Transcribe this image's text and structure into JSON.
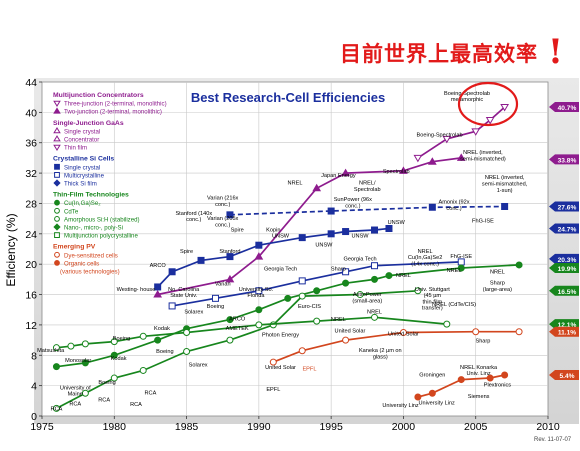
{
  "slide_title": "目前世界上最高效率",
  "exclaim": "!",
  "rev_note": "Rev. 11-07-07",
  "chart_data": {
    "type": "line",
    "title": "Best Research-Cell Efficiencies",
    "xlabel": "",
    "ylabel": "Efficiency (%)",
    "xlim": [
      1975,
      2010
    ],
    "ylim": [
      0,
      44
    ],
    "xticks": [
      1975,
      1980,
      1985,
      1990,
      1995,
      2000,
      2005,
      2010
    ],
    "yticks": [
      0,
      4,
      8,
      12,
      16,
      20,
      24,
      28,
      32,
      36,
      40,
      44
    ],
    "legend": {
      "placement": "top-left",
      "groups": [
        {
          "heading": "Multijunction Concentrators",
          "color": "#8e1c8e",
          "items": [
            {
              "label": "Three-junction (2-terminal, monolithic)",
              "marker": "tri-down-open",
              "color": "#8e1c8e"
            },
            {
              "label": "Two-junction (2-terminal, monolithic)",
              "marker": "tri-up",
              "color": "#8e1c8e"
            }
          ]
        },
        {
          "heading": "Single-Junction GaAs",
          "color": "#8e1c8e",
          "items": [
            {
              "label": "Single crystal",
              "marker": "tri-up-open",
              "color": "#8e1c8e"
            },
            {
              "label": "Concentrator",
              "marker": "tri-up-open",
              "color": "#8e1c8e"
            },
            {
              "label": "Thin film",
              "marker": "tri-down-open",
              "color": "#8e1c8e"
            }
          ]
        },
        {
          "heading": "Crystalline Si Cells",
          "color": "#1b2f9e",
          "items": [
            {
              "label": "Single crystal",
              "marker": "square",
              "color": "#1b2f9e"
            },
            {
              "label": "Multicrystalline",
              "marker": "square-open",
              "color": "#1b2f9e"
            },
            {
              "label": "Thick Si film",
              "marker": "diamond",
              "color": "#1b2f9e"
            }
          ]
        },
        {
          "heading": "Thin-Film Technologies",
          "color": "#17861d",
          "items": [
            {
              "label": "Cu(In,Ga)Se₂",
              "marker": "circle",
              "color": "#17861d"
            },
            {
              "label": "CdTe",
              "marker": "circle-open",
              "color": "#17861d"
            },
            {
              "label": "Amorphous Si:H (stabilized)",
              "marker": "circle-open",
              "color": "#17861d"
            },
            {
              "label": "Nano-, micro-, poly-Si",
              "marker": "diamond",
              "color": "#17861d"
            },
            {
              "label": "Multijunction polycrystalline",
              "marker": "square-open",
              "color": "#17861d"
            }
          ]
        },
        {
          "heading": "Emerging PV",
          "color": "#d2461e",
          "items": [
            {
              "label": "Dye-sensitized cells",
              "marker": "circle-open",
              "color": "#d2461e"
            },
            {
              "label": "Organic cells",
              "marker": "circle",
              "color": "#d2461e"
            },
            {
              "label": "(various technologies)",
              "marker": "none",
              "color": "#d2461e"
            }
          ]
        }
      ]
    },
    "series": [
      {
        "name": "Three-junction (2-terminal, monolithic)",
        "color": "#8e1c8e",
        "marker": "tri-down-open",
        "x": [
          2001,
          2003,
          2005,
          2006,
          2007
        ],
        "y": [
          34,
          36.5,
          37.5,
          39,
          40.7
        ]
      },
      {
        "name": "Two-junction (2-terminal, monolithic)",
        "color": "#8e1c8e",
        "marker": "tri-up",
        "x": [
          1983,
          1988,
          1990,
          1994,
          1996,
          2000,
          2002,
          2004
        ],
        "y": [
          16,
          18,
          21,
          30,
          32,
          32.3,
          33.5,
          34
        ]
      },
      {
        "name": "Single crystal Si",
        "color": "#1b2f9e",
        "marker": "square",
        "x": [
          1983,
          1984,
          1986,
          1988,
          1990,
          1993,
          1995,
          1996,
          1998,
          1999
        ],
        "y": [
          17,
          19,
          20.5,
          21,
          22.5,
          23.5,
          24,
          24.3,
          24.5,
          24.7
        ]
      },
      {
        "name": "Multicrystalline Si",
        "color": "#1b2f9e",
        "marker": "square-open",
        "x": [
          1984,
          1987,
          1990,
          1993,
          1996,
          1998,
          2004
        ],
        "y": [
          14.5,
          15.5,
          16.5,
          17.8,
          19,
          19.8,
          20.3
        ]
      },
      {
        "name": "Si concentrator (dashed)",
        "color": "#1b2f9e",
        "marker": "square",
        "x": [
          1988,
          1995,
          2002,
          2007
        ],
        "y": [
          26.5,
          27,
          27.5,
          27.6
        ]
      },
      {
        "name": "Cu(In,Ga)Se2",
        "color": "#17861d",
        "marker": "circle",
        "x": [
          1976,
          1978,
          1980,
          1983,
          1985,
          1988,
          1990,
          1992,
          1994,
          1996,
          1998,
          1999,
          2004,
          2008
        ],
        "y": [
          6.5,
          7,
          8,
          10,
          11.5,
          12.7,
          14,
          15.5,
          16.5,
          17.5,
          18,
          18.5,
          19.5,
          19.9
        ]
      },
      {
        "name": "CdTe",
        "color": "#17861d",
        "marker": "circle-open",
        "x": [
          1976,
          1978,
          1980,
          1982,
          1985,
          1988,
          1991,
          1993,
          1997,
          2001
        ],
        "y": [
          1,
          3,
          5,
          6,
          8.5,
          10,
          12,
          15.8,
          16,
          16.5
        ]
      },
      {
        "name": "Amorphous Si:H (stabilized)",
        "color": "#17861d",
        "marker": "circle-open",
        "x": [
          1976,
          1977,
          1978,
          1980,
          1982,
          1985,
          1990,
          1994,
          1998,
          2003
        ],
        "y": [
          9,
          9.2,
          9.5,
          9.8,
          10.5,
          11,
          12,
          12.5,
          13,
          12.1
        ]
      },
      {
        "name": "Dye-sensitized cells",
        "color": "#d2461e",
        "marker": "circle-open",
        "x": [
          1991,
          1993,
          1996,
          2000,
          2005,
          2008
        ],
        "y": [
          7.1,
          8.6,
          10,
          11,
          11.1,
          11.1
        ]
      },
      {
        "name": "Organic cells",
        "color": "#d2461e",
        "marker": "circle",
        "x": [
          2001,
          2002,
          2004,
          2006,
          2007
        ],
        "y": [
          2.5,
          3,
          4.8,
          5,
          5.4
        ]
      }
    ],
    "right_labels": [
      {
        "text": "40.7%",
        "y": 40.7,
        "color": "#8e1c8e"
      },
      {
        "text": "33.8%",
        "y": 33.8,
        "color": "#8e1c8e"
      },
      {
        "text": "27.6%",
        "y": 27.6,
        "color": "#1b2f9e"
      },
      {
        "text": "24.7%",
        "y": 24.7,
        "color": "#1b2f9e"
      },
      {
        "text": "20.3%",
        "y": 20.7,
        "color": "#1b2f9e"
      },
      {
        "text": "19.9%",
        "y": 19.5,
        "color": "#17861d"
      },
      {
        "text": "16.5%",
        "y": 16.5,
        "color": "#17861d"
      },
      {
        "text": "12.1%",
        "y": 12.1,
        "color": "#17861d"
      },
      {
        "text": "11.1%",
        "y": 11.1,
        "color": "#d2461e"
      },
      {
        "text": "5.4%",
        "y": 5.4,
        "color": "#d2461e"
      }
    ],
    "annotations": [
      {
        "text": "Boeing-Spectrolab metamorphic",
        "x": 2004.4,
        "y": 42.3,
        "color": "#000000"
      },
      {
        "text": "Boeing-Spectrolab",
        "x": 2002.5,
        "y": 36.8,
        "color": "#000000"
      },
      {
        "text": "Spectrolab",
        "x": 1999.5,
        "y": 32,
        "color": "#000000"
      },
      {
        "text": "NREL (inverted, semi-mismatched)",
        "x": 2005.5,
        "y": 34.5,
        "color": "#000000"
      },
      {
        "text": "NREL (inverted, semi-mismatched, 1-sun)",
        "x": 2007,
        "y": 31.2,
        "color": "#000000"
      },
      {
        "text": "Japan Energy",
        "x": 1995.5,
        "y": 31.5,
        "color": "#000000"
      },
      {
        "text": "NREL",
        "x": 1992.5,
        "y": 30.5,
        "color": "#000000"
      },
      {
        "text": "NREL/ Spectrolab",
        "x": 1997.5,
        "y": 30.5,
        "color": "#000000"
      },
      {
        "text": "SunPower (96x conc.)",
        "x": 1996.5,
        "y": 28.3,
        "color": "#000000"
      },
      {
        "text": "Amonix (92x conc.)",
        "x": 2003.5,
        "y": 28,
        "color": "#000000"
      },
      {
        "text": "FhG-ISE",
        "x": 2005.5,
        "y": 25.5,
        "color": "#000000"
      },
      {
        "text": "Varian (216x conc.)",
        "x": 1987.5,
        "y": 28.5,
        "color": "#000000"
      },
      {
        "text": "Stanford (140x conc.)",
        "x": 1985.5,
        "y": 26.5,
        "color": "#000000"
      },
      {
        "text": "Varian (205x conc.)",
        "x": 1987.5,
        "y": 25.8,
        "color": "#000000"
      },
      {
        "text": "Spire",
        "x": 1988.5,
        "y": 24.3,
        "color": "#000000"
      },
      {
        "text": "Kopin",
        "x": 1991,
        "y": 24.3,
        "color": "#000000"
      },
      {
        "text": "UNSW",
        "x": 1991.5,
        "y": 23.5,
        "color": "#000000"
      },
      {
        "text": "UNSW",
        "x": 1994.5,
        "y": 22.3,
        "color": "#000000"
      },
      {
        "text": "UNSW",
        "x": 1997,
        "y": 23.5,
        "color": "#000000"
      },
      {
        "text": "UNSW",
        "x": 1999.5,
        "y": 25.3,
        "color": "#000000"
      },
      {
        "text": "Spire",
        "x": 1985,
        "y": 21.5,
        "color": "#000000"
      },
      {
        "text": "Stanford",
        "x": 1988,
        "y": 21.5,
        "color": "#000000"
      },
      {
        "text": "ARCO",
        "x": 1983,
        "y": 19.6,
        "color": "#000000"
      },
      {
        "text": "Westing- house",
        "x": 1981.5,
        "y": 16.5,
        "color": "#000000"
      },
      {
        "text": "Varian",
        "x": 1987.5,
        "y": 17.2,
        "color": "#000000"
      },
      {
        "text": "Georgia Tech",
        "x": 1991.5,
        "y": 19.2,
        "color": "#000000"
      },
      {
        "text": "Georgia Tech",
        "x": 1997,
        "y": 20.5,
        "color": "#000000"
      },
      {
        "text": "Sharp",
        "x": 1995.5,
        "y": 19.2,
        "color": "#000000"
      },
      {
        "text": "NREL Cu(In,Ga)Se2 (14x conc.)",
        "x": 2001.5,
        "y": 21.5,
        "color": "#000000"
      },
      {
        "text": "FhG-ISE",
        "x": 2004,
        "y": 20.8,
        "color": "#000000"
      },
      {
        "text": "NREL",
        "x": 2003.5,
        "y": 19,
        "color": "#000000"
      },
      {
        "text": "NREL",
        "x": 2000,
        "y": 18.3,
        "color": "#000000"
      },
      {
        "text": "NREL",
        "x": 2006.5,
        "y": 18.8,
        "color": "#000000"
      },
      {
        "text": "Sharp (large-area)",
        "x": 2006.5,
        "y": 17.3,
        "color": "#000000"
      },
      {
        "text": "NREL (CdTe/CIS)",
        "x": 2003.5,
        "y": 14.5,
        "color": "#000000"
      },
      {
        "text": "Euro-CIS",
        "x": 1993.5,
        "y": 14.2,
        "color": "#000000"
      },
      {
        "text": "AstroPower (small-area)",
        "x": 1997.5,
        "y": 15.8,
        "color": "#000000"
      },
      {
        "text": "Univ. Stuttgart (45 µm thin-film transfer)",
        "x": 2002,
        "y": 16.5,
        "color": "#000000"
      },
      {
        "text": "University So. Florida",
        "x": 1989.8,
        "y": 16.5,
        "color": "#000000"
      },
      {
        "text": "No. Carolina State Univ.",
        "x": 1984.8,
        "y": 16.5,
        "color": "#000000"
      },
      {
        "text": "Solarex",
        "x": 1985.5,
        "y": 13.5,
        "color": "#000000"
      },
      {
        "text": "Boeing",
        "x": 1987,
        "y": 14.2,
        "color": "#000000"
      },
      {
        "text": "ARCO",
        "x": 1988.5,
        "y": 12.6,
        "color": "#000000"
      },
      {
        "text": "AMETEK",
        "x": 1988.5,
        "y": 11.3,
        "color": "#000000"
      },
      {
        "text": "Photon Energy",
        "x": 1991.5,
        "y": 10.5,
        "color": "#000000"
      },
      {
        "text": "NREL",
        "x": 1995.5,
        "y": 12.5,
        "color": "#000000"
      },
      {
        "text": "NREL",
        "x": 1998,
        "y": 13.5,
        "color": "#000000"
      },
      {
        "text": "United Solar",
        "x": 1996.3,
        "y": 11,
        "color": "#000000"
      },
      {
        "text": "United Solar",
        "x": 2000,
        "y": 10.6,
        "color": "#000000"
      },
      {
        "text": "Kodak",
        "x": 1983.3,
        "y": 11.3,
        "color": "#000000"
      },
      {
        "text": "Boeing",
        "x": 1980.5,
        "y": 10,
        "color": "#000000"
      },
      {
        "text": "Boeing",
        "x": 1983.5,
        "y": 8.3,
        "color": "#000000"
      },
      {
        "text": "Kodak",
        "x": 1980.3,
        "y": 7.4,
        "color": "#000000"
      },
      {
        "text": "Monosolar",
        "x": 1977.5,
        "y": 7.1,
        "color": "#000000"
      },
      {
        "text": "Matsushita",
        "x": 1975.6,
        "y": 8.4,
        "color": "#000000"
      },
      {
        "text": "University of Maine",
        "x": 1977.3,
        "y": 3.5,
        "color": "#000000"
      },
      {
        "text": "Boeing",
        "x": 1979.5,
        "y": 4.2,
        "color": "#000000"
      },
      {
        "text": "RCA",
        "x": 1976,
        "y": 0.7,
        "color": "#000000"
      },
      {
        "text": "RCA",
        "x": 1977.3,
        "y": 1.4,
        "color": "#000000"
      },
      {
        "text": "RCA",
        "x": 1979.3,
        "y": 1.9,
        "color": "#000000"
      },
      {
        "text": "RCA",
        "x": 1981.5,
        "y": 1.3,
        "color": "#000000"
      },
      {
        "text": "RCA",
        "x": 1982.5,
        "y": 2.8,
        "color": "#000000"
      },
      {
        "text": "Solarex",
        "x": 1985.8,
        "y": 6.5,
        "color": "#000000"
      },
      {
        "text": "United Solar",
        "x": 1991.5,
        "y": 6.2,
        "color": "#000000"
      },
      {
        "text": "EPFL",
        "x": 1993.5,
        "y": 6,
        "color": "#d2461e"
      },
      {
        "text": "EPFL",
        "x": 1991,
        "y": 3.3,
        "color": "#000000"
      },
      {
        "text": "Kaneka (2 µm on glass)",
        "x": 1998.4,
        "y": 8.4,
        "color": "#000000"
      },
      {
        "text": "Sharp",
        "x": 2005.5,
        "y": 9.7,
        "color": "#000000"
      },
      {
        "text": "NREL Konarka Univ. Linz",
        "x": 2005.2,
        "y": 6.2,
        "color": "#000000"
      },
      {
        "text": "Groningen",
        "x": 2002,
        "y": 5.2,
        "color": "#000000"
      },
      {
        "text": "Plextronics",
        "x": 2006.5,
        "y": 3.9,
        "color": "#000000"
      },
      {
        "text": "Siemens",
        "x": 2005.2,
        "y": 2.4,
        "color": "#000000"
      },
      {
        "text": "University Linz",
        "x": 2002.3,
        "y": 1.5,
        "color": "#000000"
      },
      {
        "text": "University Linz",
        "x": 1999.8,
        "y": 1.2,
        "color": "#000000"
      }
    ]
  }
}
